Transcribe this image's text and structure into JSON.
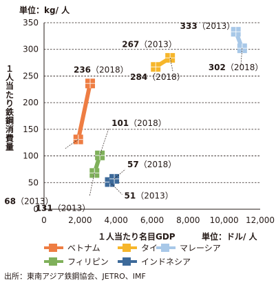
{
  "chart_data": {
    "type": "line",
    "y_unit_label": "単位：kg/ 人",
    "ylabel": "１人当たり鉄鋼消費量",
    "xlabel": "１人当たり名目GDP",
    "x_unit_label": "単位：ドル/ 人",
    "xlim": [
      0,
      12000
    ],
    "ylim": [
      0,
      350
    ],
    "x_ticks": [
      0,
      2000,
      4000,
      6000,
      8000,
      10000,
      12000
    ],
    "x_tick_labels": [
      "0",
      "2,000",
      "4,000",
      "6,000",
      "8,000",
      "10,000",
      "12,000"
    ],
    "y_ticks": [
      0,
      50,
      100,
      150,
      200,
      250,
      300,
      350
    ],
    "y_tick_labels": [
      "0",
      "50",
      "100",
      "150",
      "200",
      "250",
      "300",
      "350"
    ],
    "grid": "horizontal-dashed",
    "legend_position": "bottom",
    "series": [
      {
        "name": "ベトナム",
        "color": "#ee7d43",
        "points": [
          {
            "year": "2013",
            "x": 1900,
            "y": 131,
            "value_label": "131",
            "year_label": "（2013）"
          },
          {
            "year": "2018",
            "x": 2560,
            "y": 236,
            "value_label": "236",
            "year_label": "（2018）"
          }
        ]
      },
      {
        "name": "タイ",
        "color": "#f6b62b",
        "points": [
          {
            "year": "2013",
            "x": 6200,
            "y": 267,
            "value_label": "267",
            "year_label": "（2013）"
          },
          {
            "year": "2018",
            "x": 7000,
            "y": 284,
            "value_label": "284",
            "year_label": "（2018）"
          }
        ]
      },
      {
        "name": "マレーシア",
        "color": "#a8c8e8",
        "points": [
          {
            "year": "2013",
            "x": 10650,
            "y": 333,
            "value_label": "333",
            "year_label": "（2013）"
          },
          {
            "year": "2018",
            "x": 11000,
            "y": 302,
            "value_label": "302",
            "year_label": "（2018）"
          }
        ]
      },
      {
        "name": "フィリピン",
        "color": "#7fb05a",
        "points": [
          {
            "year": "2013",
            "x": 2800,
            "y": 68,
            "value_label": "68",
            "year_label": "（2013）"
          },
          {
            "year": "2018",
            "x": 3100,
            "y": 101,
            "value_label": "101",
            "year_label": "（2018）"
          }
        ]
      },
      {
        "name": "インドネシア",
        "color": "#3d6a9a",
        "points": [
          {
            "year": "2013",
            "x": 3650,
            "y": 51,
            "value_label": "51",
            "year_label": "（2013）"
          },
          {
            "year": "2018",
            "x": 3900,
            "y": 57,
            "value_label": "57",
            "year_label": "（2018）"
          }
        ]
      }
    ]
  },
  "source_text": "出所：東南アジア鉄鋼協会、JETRO、IMF"
}
